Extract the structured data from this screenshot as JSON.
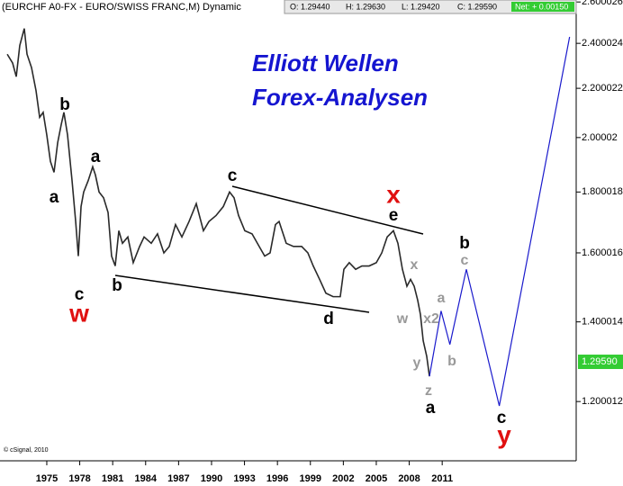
{
  "chart_data": {
    "type": "line",
    "header": "(EURCHF A0-FX - EURO/SWISS FRANC,M) Dynamic",
    "ohlc": [
      "O: 1.29440",
      "H: 1.29630",
      "L: 1.29420",
      "C: 1.29590",
      "Net: + 0.00150"
    ],
    "title_lines": [
      "Elliott Wellen",
      "Forex-Analysen"
    ],
    "copyright": "© cSignal, 2010",
    "log_scale": true,
    "ylim": [
      1.07,
      2.61
    ],
    "yticks": [
      1.200012,
      1.400014,
      1.600016,
      1.800018,
      2.00002,
      2.200022,
      2.400024,
      2.600026
    ],
    "xlim": [
      1970.74,
      2023.2
    ],
    "xticks": [
      1975,
      1978,
      1981,
      1984,
      1987,
      1990,
      1993,
      1996,
      1999,
      2002,
      2005,
      2008,
      2011
    ],
    "last_price": {
      "value": 1.2959,
      "label": "1.29590"
    },
    "series": [
      {
        "color": "#2a2a2a",
        "x": [
          1971.4,
          1971.89,
          1972.22,
          1972.54,
          1972.95,
          1973.2,
          1973.61,
          1974.02,
          1974.35,
          1974.67,
          1975.0,
          1975.33,
          1975.66,
          1975.99,
          1976.31,
          1976.56,
          1976.89,
          1977.3,
          1977.63,
          1977.87,
          1978.12,
          1978.36,
          1978.77,
          1979.18,
          1979.43,
          1979.76,
          1980.17,
          1980.58,
          1980.9,
          1981.23,
          1981.56,
          1981.89,
          1982.38,
          1982.87,
          1983.45,
          1983.86,
          1984.51,
          1985.08,
          1985.66,
          1986.15,
          1986.72,
          1987.3,
          1987.95,
          1988.61,
          1989.26,
          1989.76,
          1990.41,
          1991.07,
          1991.64,
          1992.05,
          1992.46,
          1993.03,
          1993.69,
          1994.34,
          1994.84,
          1995.33,
          1995.82,
          1996.15,
          1996.8,
          1997.46,
          1998.2,
          1998.77,
          1999.26,
          1999.84,
          2000.41,
          2001.07,
          2001.72,
          2002.05,
          2002.54,
          2003.12,
          2003.69,
          2004.35,
          2005.0,
          2005.5,
          2005.99,
          2006.56,
          2006.97,
          2007.38,
          2007.79,
          2008.12,
          2008.45,
          2008.77,
          2009.02,
          2009.27,
          2009.59,
          2009.84
        ],
        "values": [
          2.35,
          2.31,
          2.25,
          2.39,
          2.47,
          2.35,
          2.29,
          2.19,
          2.08,
          2.1,
          2.01,
          1.91,
          1.87,
          1.98,
          2.05,
          2.1,
          2.01,
          1.84,
          1.7,
          1.59,
          1.75,
          1.8,
          1.84,
          1.89,
          1.86,
          1.8,
          1.78,
          1.73,
          1.59,
          1.56,
          1.67,
          1.63,
          1.65,
          1.57,
          1.62,
          1.65,
          1.63,
          1.66,
          1.6,
          1.62,
          1.69,
          1.65,
          1.7,
          1.76,
          1.67,
          1.7,
          1.72,
          1.75,
          1.8,
          1.78,
          1.72,
          1.67,
          1.66,
          1.62,
          1.59,
          1.6,
          1.69,
          1.7,
          1.63,
          1.62,
          1.62,
          1.6,
          1.56,
          1.52,
          1.48,
          1.47,
          1.47,
          1.55,
          1.57,
          1.55,
          1.56,
          1.56,
          1.57,
          1.6,
          1.65,
          1.67,
          1.63,
          1.55,
          1.5,
          1.52,
          1.5,
          1.46,
          1.42,
          1.35,
          1.31,
          1.26
        ]
      },
      {
        "color": "#1a1acc",
        "x": [
          2009.84,
          2010.9,
          2011.7,
          2013.2,
          2016.2,
          2022.6
        ],
        "values": [
          1.26,
          1.43,
          1.34,
          1.55,
          1.19,
          2.43
        ]
      }
    ],
    "wave_labels": [
      {
        "text": "b",
        "color": "#000"
      },
      {
        "text": "a",
        "color": "#000"
      },
      {
        "text": "a",
        "color": "#000"
      },
      {
        "text": "c",
        "color": "#000"
      },
      {
        "text": "w",
        "color": "#e01010"
      },
      {
        "text": "b",
        "color": "#000"
      },
      {
        "text": "c",
        "color": "#000"
      },
      {
        "text": "x",
        "color": "#e01010"
      },
      {
        "text": "e",
        "color": "#000"
      },
      {
        "text": "d",
        "color": "#000"
      },
      {
        "text": "b",
        "color": "#000"
      },
      {
        "text": "c",
        "color": "#999"
      },
      {
        "text": "x",
        "color": "#999"
      },
      {
        "text": "w",
        "color": "#999"
      },
      {
        "text": "x2",
        "color": "#999"
      },
      {
        "text": "a",
        "color": "#999"
      },
      {
        "text": "y",
        "color": "#999"
      },
      {
        "text": "b",
        "color": "#999"
      },
      {
        "text": "z",
        "color": "#999"
      },
      {
        "text": "a",
        "color": "#000"
      },
      {
        "text": "c",
        "color": "#000"
      },
      {
        "text": "y",
        "color": "#e01010"
      }
    ]
  }
}
